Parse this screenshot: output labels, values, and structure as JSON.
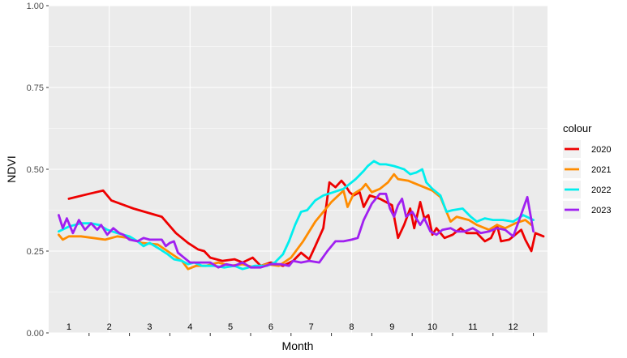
{
  "chart_data": {
    "type": "line",
    "xlabel": "Month",
    "ylabel": "NDVI",
    "ylim": [
      0,
      1
    ],
    "yticks": [
      "0.00",
      "0.25",
      "0.50",
      "0.75",
      "1.00"
    ],
    "month_labels": [
      "1",
      "2",
      "3",
      "4",
      "5",
      "6",
      "7",
      "8",
      "9",
      "10",
      "11",
      "12"
    ],
    "legend_title": "colour",
    "grid": true,
    "legend_position": "right",
    "series": [
      {
        "name": "2020",
        "color": "#ee0000",
        "points": [
          [
            1.0,
            0.41
          ],
          [
            1.5,
            0.425
          ],
          [
            1.85,
            0.435
          ],
          [
            2.05,
            0.405
          ],
          [
            2.6,
            0.38
          ],
          [
            3.3,
            0.355
          ],
          [
            3.65,
            0.305
          ],
          [
            3.95,
            0.275
          ],
          [
            4.2,
            0.255
          ],
          [
            4.35,
            0.25
          ],
          [
            4.5,
            0.23
          ],
          [
            4.8,
            0.22
          ],
          [
            5.1,
            0.225
          ],
          [
            5.3,
            0.215
          ],
          [
            5.55,
            0.23
          ],
          [
            5.75,
            0.205
          ],
          [
            6.0,
            0.215
          ],
          [
            6.3,
            0.205
          ],
          [
            6.55,
            0.22
          ],
          [
            6.75,
            0.245
          ],
          [
            6.95,
            0.225
          ],
          [
            7.1,
            0.265
          ],
          [
            7.3,
            0.32
          ],
          [
            7.45,
            0.46
          ],
          [
            7.6,
            0.445
          ],
          [
            7.75,
            0.465
          ],
          [
            7.85,
            0.45
          ],
          [
            7.95,
            0.43
          ],
          [
            8.05,
            0.42
          ],
          [
            8.2,
            0.43
          ],
          [
            8.3,
            0.385
          ],
          [
            8.45,
            0.42
          ],
          [
            8.7,
            0.41
          ],
          [
            9.0,
            0.39
          ],
          [
            9.15,
            0.29
          ],
          [
            9.3,
            0.33
          ],
          [
            9.45,
            0.38
          ],
          [
            9.55,
            0.32
          ],
          [
            9.7,
            0.4
          ],
          [
            9.8,
            0.35
          ],
          [
            9.9,
            0.36
          ],
          [
            10.0,
            0.3
          ],
          [
            10.1,
            0.32
          ],
          [
            10.3,
            0.29
          ],
          [
            10.5,
            0.3
          ],
          [
            10.7,
            0.32
          ],
          [
            10.85,
            0.305
          ],
          [
            11.0,
            0.305
          ],
          [
            11.1,
            0.305
          ],
          [
            11.3,
            0.28
          ],
          [
            11.45,
            0.29
          ],
          [
            11.6,
            0.33
          ],
          [
            11.7,
            0.28
          ],
          [
            11.9,
            0.285
          ],
          [
            12.05,
            0.3
          ],
          [
            12.2,
            0.315
          ],
          [
            12.3,
            0.285
          ],
          [
            12.45,
            0.25
          ],
          [
            12.55,
            0.305
          ],
          [
            12.75,
            0.295
          ]
        ]
      },
      {
        "name": "2021",
        "color": "#ff8c00",
        "points": [
          [
            0.75,
            0.3
          ],
          [
            0.85,
            0.285
          ],
          [
            1.0,
            0.295
          ],
          [
            1.3,
            0.295
          ],
          [
            1.6,
            0.29
          ],
          [
            1.9,
            0.285
          ],
          [
            2.2,
            0.295
          ],
          [
            2.5,
            0.29
          ],
          [
            2.8,
            0.275
          ],
          [
            3.2,
            0.27
          ],
          [
            3.5,
            0.245
          ],
          [
            3.8,
            0.22
          ],
          [
            3.95,
            0.195
          ],
          [
            4.15,
            0.205
          ],
          [
            4.4,
            0.205
          ],
          [
            4.7,
            0.215
          ],
          [
            5.0,
            0.205
          ],
          [
            5.3,
            0.21
          ],
          [
            5.6,
            0.2
          ],
          [
            5.9,
            0.21
          ],
          [
            6.2,
            0.205
          ],
          [
            6.5,
            0.23
          ],
          [
            6.8,
            0.28
          ],
          [
            7.1,
            0.34
          ],
          [
            7.5,
            0.4
          ],
          [
            7.8,
            0.435
          ],
          [
            7.9,
            0.385
          ],
          [
            8.05,
            0.425
          ],
          [
            8.25,
            0.44
          ],
          [
            8.35,
            0.455
          ],
          [
            8.5,
            0.43
          ],
          [
            8.7,
            0.44
          ],
          [
            8.9,
            0.46
          ],
          [
            9.05,
            0.485
          ],
          [
            9.15,
            0.47
          ],
          [
            9.4,
            0.465
          ],
          [
            9.6,
            0.455
          ],
          [
            10.0,
            0.435
          ],
          [
            10.2,
            0.415
          ],
          [
            10.3,
            0.385
          ],
          [
            10.45,
            0.34
          ],
          [
            10.6,
            0.355
          ],
          [
            10.9,
            0.345
          ],
          [
            11.1,
            0.33
          ],
          [
            11.4,
            0.315
          ],
          [
            11.6,
            0.33
          ],
          [
            11.8,
            0.32
          ],
          [
            12.05,
            0.335
          ],
          [
            12.3,
            0.345
          ],
          [
            12.45,
            0.33
          ]
        ]
      },
      {
        "name": "2022",
        "color": "#00eeee",
        "points": [
          [
            0.75,
            0.31
          ],
          [
            1.0,
            0.325
          ],
          [
            1.3,
            0.335
          ],
          [
            1.55,
            0.335
          ],
          [
            1.75,
            0.33
          ],
          [
            1.95,
            0.315
          ],
          [
            2.2,
            0.305
          ],
          [
            2.5,
            0.295
          ],
          [
            2.7,
            0.28
          ],
          [
            2.85,
            0.265
          ],
          [
            3.0,
            0.275
          ],
          [
            3.2,
            0.26
          ],
          [
            3.45,
            0.24
          ],
          [
            3.6,
            0.225
          ],
          [
            3.8,
            0.22
          ],
          [
            3.95,
            0.21
          ],
          [
            4.1,
            0.215
          ],
          [
            4.3,
            0.205
          ],
          [
            4.6,
            0.205
          ],
          [
            4.85,
            0.2
          ],
          [
            5.1,
            0.205
          ],
          [
            5.3,
            0.195
          ],
          [
            5.6,
            0.205
          ],
          [
            5.9,
            0.205
          ],
          [
            6.1,
            0.215
          ],
          [
            6.3,
            0.24
          ],
          [
            6.45,
            0.28
          ],
          [
            6.6,
            0.33
          ],
          [
            6.75,
            0.37
          ],
          [
            6.9,
            0.375
          ],
          [
            7.1,
            0.405
          ],
          [
            7.3,
            0.42
          ],
          [
            7.55,
            0.43
          ],
          [
            7.8,
            0.44
          ],
          [
            8.1,
            0.47
          ],
          [
            8.3,
            0.495
          ],
          [
            8.4,
            0.51
          ],
          [
            8.55,
            0.525
          ],
          [
            8.7,
            0.515
          ],
          [
            8.85,
            0.515
          ],
          [
            9.05,
            0.51
          ],
          [
            9.3,
            0.5
          ],
          [
            9.45,
            0.485
          ],
          [
            9.6,
            0.49
          ],
          [
            9.75,
            0.5
          ],
          [
            9.85,
            0.46
          ],
          [
            10.0,
            0.44
          ],
          [
            10.2,
            0.42
          ],
          [
            10.35,
            0.37
          ],
          [
            10.5,
            0.375
          ],
          [
            10.75,
            0.38
          ],
          [
            10.95,
            0.355
          ],
          [
            11.1,
            0.34
          ],
          [
            11.3,
            0.35
          ],
          [
            11.5,
            0.345
          ],
          [
            11.75,
            0.345
          ],
          [
            12.0,
            0.34
          ],
          [
            12.25,
            0.36
          ],
          [
            12.5,
            0.345
          ]
        ]
      },
      {
        "name": "2023",
        "color": "#a020f0",
        "points": [
          [
            0.75,
            0.36
          ],
          [
            0.85,
            0.32
          ],
          [
            0.95,
            0.35
          ],
          [
            1.1,
            0.305
          ],
          [
            1.25,
            0.345
          ],
          [
            1.4,
            0.315
          ],
          [
            1.55,
            0.335
          ],
          [
            1.7,
            0.315
          ],
          [
            1.8,
            0.33
          ],
          [
            1.95,
            0.3
          ],
          [
            2.1,
            0.32
          ],
          [
            2.25,
            0.305
          ],
          [
            2.35,
            0.3
          ],
          [
            2.5,
            0.285
          ],
          [
            2.7,
            0.28
          ],
          [
            2.85,
            0.29
          ],
          [
            3.0,
            0.285
          ],
          [
            3.3,
            0.285
          ],
          [
            3.4,
            0.265
          ],
          [
            3.5,
            0.275
          ],
          [
            3.6,
            0.28
          ],
          [
            3.7,
            0.245
          ],
          [
            3.85,
            0.23
          ],
          [
            4.0,
            0.215
          ],
          [
            4.25,
            0.215
          ],
          [
            4.5,
            0.215
          ],
          [
            4.7,
            0.2
          ],
          [
            4.9,
            0.21
          ],
          [
            5.1,
            0.205
          ],
          [
            5.3,
            0.215
          ],
          [
            5.5,
            0.2
          ],
          [
            5.75,
            0.2
          ],
          [
            6.0,
            0.21
          ],
          [
            6.25,
            0.21
          ],
          [
            6.45,
            0.205
          ],
          [
            6.55,
            0.22
          ],
          [
            6.75,
            0.215
          ],
          [
            6.95,
            0.22
          ],
          [
            7.2,
            0.215
          ],
          [
            7.4,
            0.25
          ],
          [
            7.6,
            0.28
          ],
          [
            7.8,
            0.28
          ],
          [
            8.0,
            0.285
          ],
          [
            8.15,
            0.29
          ],
          [
            8.3,
            0.345
          ],
          [
            8.5,
            0.395
          ],
          [
            8.7,
            0.425
          ],
          [
            8.85,
            0.425
          ],
          [
            8.95,
            0.38
          ],
          [
            9.05,
            0.355
          ],
          [
            9.15,
            0.39
          ],
          [
            9.25,
            0.41
          ],
          [
            9.35,
            0.355
          ],
          [
            9.5,
            0.37
          ],
          [
            9.6,
            0.35
          ],
          [
            9.7,
            0.33
          ],
          [
            9.8,
            0.35
          ],
          [
            9.95,
            0.31
          ],
          [
            10.1,
            0.3
          ],
          [
            10.25,
            0.315
          ],
          [
            10.45,
            0.32
          ],
          [
            10.6,
            0.31
          ],
          [
            10.8,
            0.31
          ],
          [
            11.0,
            0.32
          ],
          [
            11.2,
            0.305
          ],
          [
            11.4,
            0.31
          ],
          [
            11.6,
            0.32
          ],
          [
            11.8,
            0.315
          ],
          [
            12.0,
            0.295
          ],
          [
            12.15,
            0.345
          ],
          [
            12.35,
            0.415
          ],
          [
            12.5,
            0.31
          ]
        ]
      }
    ]
  }
}
